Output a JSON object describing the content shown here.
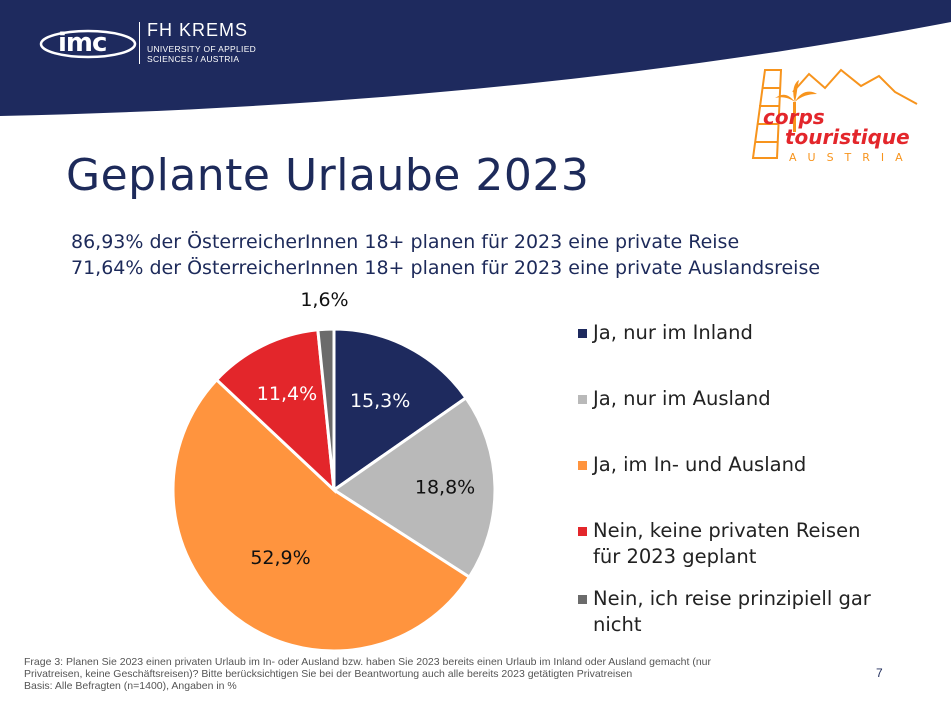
{
  "header": {
    "imc_logo_text": "imc",
    "fh_title": "FH KREMS",
    "fh_subtitle_line1": "UNIVERSITY OF APPLIED",
    "fh_subtitle_line2": "SCIENCES / AUSTRIA",
    "partner_logo_line1": "corps",
    "partner_logo_line2": "touristique",
    "partner_logo_line3": "AUSTRIA"
  },
  "slide": {
    "title": "Geplante Urlaube 2023",
    "subtitle_1": "86,93% der ÖsterreicherInnen 18+ planen für 2023 eine private Reise",
    "subtitle_2": "71,64% der ÖsterreicherInnen 18+ planen für 2023 eine private Auslandsreise",
    "footer_note_1": "Frage 3: Planen Sie 2023 einen privaten Urlaub im In- oder Ausland bzw. haben Sie 2023 bereits einen Urlaub im Inland oder Ausland gemacht (nur",
    "footer_note_2": "Privatreisen, keine Geschäftsreisen)? Bitte berücksichtigen Sie bei der Beantwortung auch alle bereits 2023 getätigten Privatreisen",
    "footer_note_3": "Basis: Alle Befragten (n=1400), Angaben in %",
    "page_number": "7"
  },
  "colors": {
    "header_navy": "#1e2a5e",
    "title_navy": "#1d2a5a",
    "logo_orange": "#f7941d"
  },
  "chart_data": {
    "type": "pie",
    "title": "",
    "legend_position": "right",
    "slices": [
      {
        "label": "Ja, nur im Inland",
        "value": 15.3,
        "data_label": "15,3%",
        "color": "#1e2a5e",
        "label_color": "#ffffff"
      },
      {
        "label": "Ja, nur im Ausland",
        "value": 18.8,
        "data_label": "18,8%",
        "color": "#b9b9b9",
        "label_color": "#111111"
      },
      {
        "label": "Ja, im In- und Ausland",
        "value": 52.9,
        "data_label": "52,9%",
        "color": "#ff943e",
        "label_color": "#111111"
      },
      {
        "label": "Nein, keine privaten Reisen für 2023 geplant",
        "value": 11.4,
        "data_label": "11,4%",
        "color": "#e3262b",
        "label_color": "#ffffff"
      },
      {
        "label": "Nein, ich reise prinzipiell gar nicht",
        "value": 1.6,
        "data_label": "1,6%",
        "color": "#6b6b6b",
        "label_color": "#111111"
      }
    ]
  }
}
